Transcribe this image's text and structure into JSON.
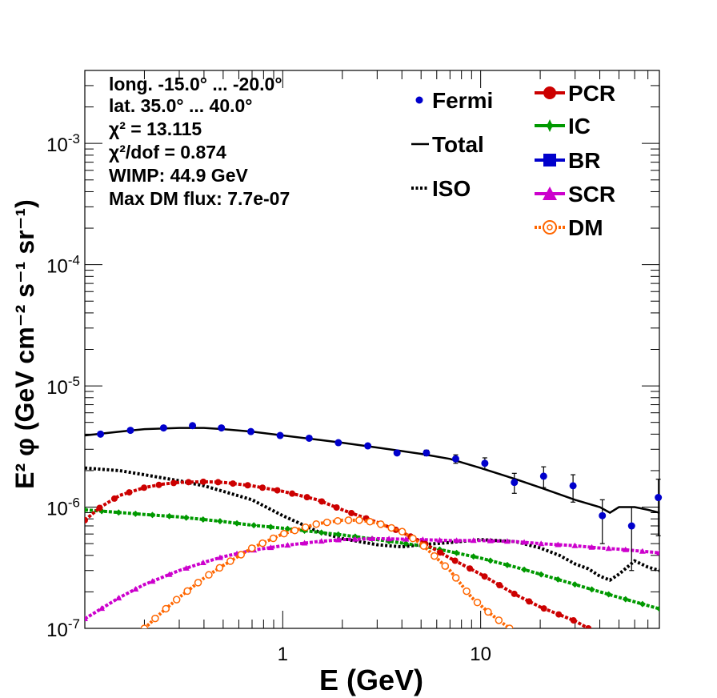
{
  "chart_data": {
    "type": "scatter",
    "title": "",
    "xlabel": "E (GeV)",
    "ylabel": "E² φ (GeV cm⁻² s⁻¹ sr⁻¹)",
    "xscale": "log",
    "yscale": "log",
    "xlim": [
      0.1,
      80
    ],
    "ylim": [
      1e-07,
      0.004
    ],
    "x_ticks": [
      {
        "value": 1,
        "label": "1"
      },
      {
        "value": 10,
        "label": "10"
      }
    ],
    "y_ticks": [
      {
        "value": 1e-07,
        "base": "10",
        "exp": "-7"
      },
      {
        "value": 1e-06,
        "base": "10",
        "exp": "-6"
      },
      {
        "value": 1e-05,
        "base": "10",
        "exp": "-5"
      },
      {
        "value": 0.0001,
        "base": "10",
        "exp": "-4"
      },
      {
        "value": 0.001,
        "base": "10",
        "exp": "-3"
      }
    ],
    "info_lines": [
      "long. -15.0° ... -20.0°",
      "lat. 35.0° ... 40.0°",
      "χ² = 13.115",
      "χ²/dof = 0.874",
      "WIMP: 44.9 GeV",
      "Max DM flux: 7.7e-07"
    ],
    "legend_left": [
      {
        "key": "fermi",
        "label": "Fermi"
      },
      {
        "key": "total",
        "label": "Total"
      },
      {
        "key": "iso",
        "label": "ISO"
      }
    ],
    "legend_right": [
      {
        "key": "pcr",
        "label": "PCR"
      },
      {
        "key": "ic",
        "label": "IC"
      },
      {
        "key": "br",
        "label": "BR"
      },
      {
        "key": "scr",
        "label": "SCR"
      },
      {
        "key": "dm",
        "label": "DM"
      }
    ],
    "colors": {
      "fermi": "#0000cc",
      "total": "#000000",
      "iso": "#000000",
      "pcr": "#cc0000",
      "ic": "#009900",
      "br": "#0000cc",
      "scr": "#cc00cc",
      "dm": "#ff6600"
    },
    "fermi": {
      "x": [
        0.12,
        0.17,
        0.25,
        0.35,
        0.49,
        0.69,
        0.97,
        1.36,
        1.91,
        2.69,
        3.78,
        5.32,
        7.48,
        10.5,
        14.8,
        20.8,
        29.3,
        41.2,
        57.9,
        79.0
      ],
      "y": [
        4e-06,
        4.3e-06,
        4.5e-06,
        4.7e-06,
        4.5e-06,
        4.2e-06,
        3.9e-06,
        3.7e-06,
        3.4e-06,
        3.2e-06,
        2.8e-06,
        2.8e-06,
        2.5e-06,
        2.3e-06,
        1.6e-06,
        1.8e-06,
        1.5e-06,
        8.5e-07,
        7e-07,
        1.2e-06
      ],
      "err_lo": [
        1e-07,
        1e-07,
        1e-07,
        1e-07,
        1e-07,
        1e-07,
        1e-07,
        1e-07,
        1e-07,
        1e-07,
        1e-07,
        1.5e-07,
        2e-07,
        2.5e-07,
        3e-07,
        3.5e-07,
        4e-07,
        3.5e-07,
        4e-07,
        6.2e-07
      ],
      "err_hi": [
        1e-07,
        1e-07,
        1e-07,
        1e-07,
        1e-07,
        1e-07,
        1e-07,
        1e-07,
        1e-07,
        1e-07,
        1e-07,
        1.5e-07,
        2e-07,
        2.5e-07,
        3e-07,
        3.5e-07,
        3.5e-07,
        3e-07,
        3e-07,
        5e-07
      ]
    },
    "total": {
      "x": [
        0.1,
        0.15,
        0.2,
        0.3,
        0.4,
        0.5,
        0.7,
        1.0,
        1.5,
        2.0,
        3.0,
        4.0,
        5.0,
        7.0,
        10.0,
        15.0,
        20.0,
        30.0,
        40.0,
        45.0,
        50.0,
        60.0,
        70.0,
        80.0
      ],
      "y": [
        3.9e-06,
        4.2e-06,
        4.4e-06,
        4.5e-06,
        4.5e-06,
        4.4e-06,
        4.2e-06,
        3.9e-06,
        3.6e-06,
        3.4e-06,
        3.1e-06,
        2.9e-06,
        2.75e-06,
        2.5e-06,
        2.1e-06,
        1.7e-06,
        1.45e-06,
        1.15e-06,
        1e-06,
        9e-07,
        1e-06,
        1e-06,
        9.5e-07,
        9e-07
      ]
    },
    "iso": {
      "x": [
        0.1,
        0.15,
        0.2,
        0.3,
        0.4,
        0.5,
        0.7,
        1.0,
        1.5,
        2.0,
        3.0,
        4.0,
        5.0,
        7.0,
        10.0,
        15.0,
        20.0,
        25.0,
        30.0,
        35.0,
        40.0,
        45.0,
        50.0,
        60.0,
        70.0,
        80.0
      ],
      "y": [
        2.1e-06,
        2e-06,
        1.85e-06,
        1.65e-06,
        1.5e-06,
        1.35e-06,
        1.15e-06,
        8.5e-07,
        6.3e-07,
        5.5e-07,
        4.9e-07,
        4.7e-07,
        4.9e-07,
        5.1e-07,
        5.4e-07,
        5.2e-07,
        4.6e-07,
        4e-07,
        3.4e-07,
        3.1e-07,
        2.7e-07,
        2.5e-07,
        2.8e-07,
        3.6e-07,
        3.2e-07,
        3e-07
      ]
    },
    "pcr": {
      "x": [
        0.1,
        0.12,
        0.15,
        0.2,
        0.25,
        0.3,
        0.4,
        0.5,
        0.7,
        1.0,
        1.5,
        2.0,
        3.0,
        4.0,
        5.0,
        7.0,
        10.0,
        15.0,
        20.0,
        30.0,
        35.0
      ],
      "y": [
        7.8e-07,
        1e-06,
        1.25e-06,
        1.45e-06,
        1.55e-06,
        1.6e-06,
        1.62e-06,
        1.6e-06,
        1.5e-06,
        1.35e-06,
        1.15e-06,
        9.5e-07,
        7.5e-07,
        6.2e-07,
        5.2e-07,
        3.8e-07,
        2.8e-07,
        1.9e-07,
        1.5e-07,
        1.15e-07,
        1e-07
      ]
    },
    "ic": {
      "x": [
        0.1,
        0.2,
        0.3,
        0.5,
        0.7,
        1.0,
        2.0,
        3.0,
        5.0,
        7.0,
        10.0,
        15.0,
        20.0,
        30.0,
        50.0,
        80.0
      ],
      "y": [
        9.5e-07,
        8.7e-07,
        8.3e-07,
        7.6e-07,
        7.1e-07,
        6.7e-07,
        5.9e-07,
        5.4e-07,
        4.8e-07,
        4.3e-07,
        3.8e-07,
        3.2e-07,
        2.8e-07,
        2.3e-07,
        1.8e-07,
        1.45e-07
      ]
    },
    "br": {
      "x": [],
      "y": []
    },
    "scr": {
      "x": [
        0.1,
        0.15,
        0.2,
        0.3,
        0.4,
        0.5,
        0.7,
        1.0,
        1.5,
        2.0,
        3.0,
        5.0,
        7.0,
        10.0,
        15.0,
        20.0,
        30.0,
        40.0,
        50.0,
        80.0
      ],
      "y": [
        1.2e-07,
        1.8e-07,
        2.3e-07,
        3e-07,
        3.5e-07,
        3.9e-07,
        4.4e-07,
        4.8e-07,
        5.2e-07,
        5.4e-07,
        5.5e-07,
        5.4e-07,
        5.3e-07,
        5.3e-07,
        5.2e-07,
        5e-07,
        4.8e-07,
        4.6e-07,
        4.5e-07,
        4.2e-07
      ]
    },
    "dm": {
      "x": [
        0.2,
        0.25,
        0.3,
        0.4,
        0.5,
        0.7,
        1.0,
        1.5,
        2.0,
        2.5,
        3.0,
        4.0,
        5.0,
        7.0,
        9.0,
        11.0,
        12.5,
        14.0
      ],
      "y": [
        1e-07,
        1.4e-07,
        1.8e-07,
        2.6e-07,
        3.3e-07,
        4.6e-07,
        6e-07,
        7.3e-07,
        7.8e-07,
        7.8e-07,
        7.4e-07,
        6.3e-07,
        5e-07,
        3e-07,
        1.8e-07,
        1.35e-07,
        1.15e-07,
        1e-07
      ]
    }
  }
}
